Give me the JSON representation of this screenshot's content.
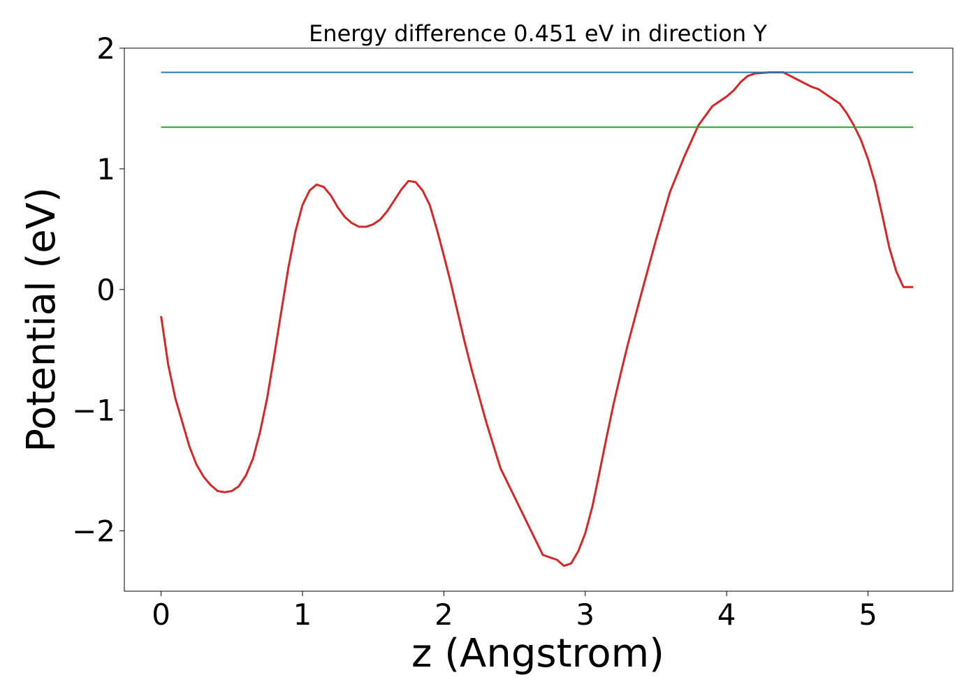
{
  "chart_data": {
    "type": "line",
    "title": "Energy difference 0.451 eV in direction Y",
    "xlabel": "z (Angstrom)",
    "ylabel": "Potential (eV)",
    "xlim": [
      -0.26,
      5.6
    ],
    "ylim": [
      -2.5,
      2.0
    ],
    "xticks": [
      0,
      1,
      2,
      3,
      4,
      5
    ],
    "yticks": [
      -2,
      -1,
      0,
      1,
      2
    ],
    "xtick_labels": [
      "0",
      "1",
      "2",
      "3",
      "4",
      "5"
    ],
    "ytick_labels": [
      "−2",
      "−1",
      "0",
      "1",
      "2"
    ],
    "grid": false,
    "series": [
      {
        "color": "#d62728",
        "x": [
          0.0,
          0.05,
          0.1,
          0.15,
          0.2,
          0.25,
          0.3,
          0.35,
          0.4,
          0.45,
          0.5,
          0.55,
          0.6,
          0.65,
          0.7,
          0.75,
          0.8,
          0.85,
          0.9,
          0.95,
          1.0,
          1.05,
          1.1,
          1.15,
          1.2,
          1.25,
          1.3,
          1.35,
          1.4,
          1.45,
          1.5,
          1.55,
          1.6,
          1.65,
          1.7,
          1.75,
          1.8,
          1.85,
          1.9,
          1.95,
          2.0,
          2.05,
          2.1,
          2.15,
          2.2,
          2.3,
          2.4,
          2.5,
          2.6,
          2.7,
          2.8,
          2.85,
          2.9,
          2.95,
          3.0,
          3.05,
          3.1,
          3.15,
          3.2,
          3.25,
          3.3,
          3.35,
          3.4,
          3.5,
          3.6,
          3.7,
          3.8,
          3.9,
          4.0,
          4.05,
          4.1,
          4.15,
          4.2,
          4.3,
          4.4,
          4.45,
          4.5,
          4.55,
          4.6,
          4.65,
          4.7,
          4.8,
          4.85,
          4.9,
          4.95,
          5.0,
          5.05,
          5.1,
          5.15,
          5.2,
          5.25,
          5.32
        ],
        "y": [
          -0.22,
          -0.62,
          -0.9,
          -1.1,
          -1.3,
          -1.45,
          -1.55,
          -1.62,
          -1.67,
          -1.68,
          -1.67,
          -1.63,
          -1.54,
          -1.4,
          -1.18,
          -0.9,
          -0.55,
          -0.18,
          0.18,
          0.48,
          0.7,
          0.82,
          0.87,
          0.85,
          0.78,
          0.68,
          0.6,
          0.55,
          0.52,
          0.52,
          0.54,
          0.58,
          0.65,
          0.74,
          0.83,
          0.9,
          0.89,
          0.82,
          0.7,
          0.5,
          0.28,
          0.05,
          -0.2,
          -0.45,
          -0.68,
          -1.1,
          -1.48,
          -1.72,
          -1.96,
          -2.2,
          -2.24,
          -2.29,
          -2.27,
          -2.17,
          -2.02,
          -1.8,
          -1.52,
          -1.23,
          -0.95,
          -0.7,
          -0.46,
          -0.24,
          -0.02,
          0.41,
          0.81,
          1.1,
          1.36,
          1.52,
          1.6,
          1.65,
          1.72,
          1.77,
          1.79,
          1.8,
          1.8,
          1.77,
          1.74,
          1.71,
          1.68,
          1.66,
          1.62,
          1.54,
          1.46,
          1.36,
          1.24,
          1.08,
          0.88,
          0.62,
          0.35,
          0.15,
          0.02,
          0.02
        ]
      },
      {
        "color": "#1f77b4",
        "x": [
          0.0,
          5.32
        ],
        "y": [
          1.8,
          1.8
        ]
      },
      {
        "color": "#2ca02c",
        "x": [
          0.0,
          5.32
        ],
        "y": [
          1.345,
          1.345
        ]
      }
    ]
  }
}
